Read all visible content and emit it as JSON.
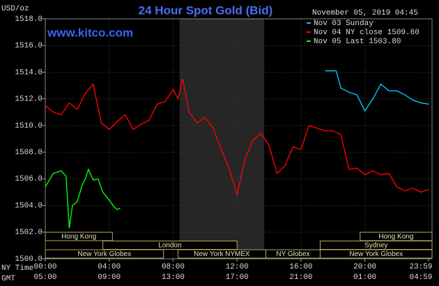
{
  "chart_data": {
    "type": "line",
    "title": "24 Hour Spot Gold (Bid)",
    "watermark": "www.kitco.com",
    "y_label": "USD/oz",
    "timestamp": "November 05, 2019 04:45",
    "legend": "top-right",
    "grid": true,
    "xlim": [
      0,
      24.2
    ],
    "ylim": [
      1500,
      1518
    ],
    "yticks": [
      {
        "value": 1500,
        "label": "1500.0"
      },
      {
        "value": 1502,
        "label": "1502.0"
      },
      {
        "value": 1504,
        "label": "1504.0"
      },
      {
        "value": 1506,
        "label": "1506.0"
      },
      {
        "value": 1508,
        "label": "1508.0"
      },
      {
        "value": 1510,
        "label": "1510.0"
      },
      {
        "value": 1512,
        "label": "1512.0"
      },
      {
        "value": 1514,
        "label": "1514.0"
      },
      {
        "value": 1516,
        "label": "1516.0"
      },
      {
        "value": 1518,
        "label": "1518.0"
      }
    ],
    "xticks": [
      {
        "value": 0,
        "label": "00:00"
      },
      {
        "value": 4,
        "label": "04:00"
      },
      {
        "value": 8,
        "label": "08:00"
      },
      {
        "value": 12,
        "label": "12:00"
      },
      {
        "value": 16,
        "label": "16:00"
      },
      {
        "value": 20,
        "label": "20:00"
      },
      {
        "value": 23.98,
        "label": "23:59"
      }
    ],
    "xticks_gmt": [
      "05:00",
      "09:00",
      "13:00",
      "17:00",
      "21:00",
      "01:00",
      "04:59"
    ],
    "x_row_labels": [
      "NY Time",
      "GMT"
    ],
    "shaded": [
      8.4,
      13.7
    ],
    "sessions": [
      {
        "label": "Hong Kong",
        "start": 0,
        "end": 4.2,
        "row": 0
      },
      {
        "label": "Hong Kong",
        "start": 19.7,
        "end": 24.2,
        "row": 0
      },
      {
        "label": "London",
        "start": 3.6,
        "end": 12.0,
        "row": 1
      },
      {
        "label": "Sydney",
        "start": 17.2,
        "end": 24.2,
        "row": 1
      },
      {
        "label": "New York Globex",
        "start": 0,
        "end": 7.4,
        "row": 2
      },
      {
        "label": "New York NYMEX",
        "start": 8.3,
        "end": 13.8,
        "row": 2
      },
      {
        "label": "NY Globex",
        "start": 13.8,
        "end": 17.2,
        "row": 2
      },
      {
        "label": "New York Globex",
        "start": 17.2,
        "end": 24.2,
        "row": 2
      }
    ],
    "series": [
      {
        "name": "Nov 03 Sunday",
        "color": "#00c8ff",
        "x": [
          17.5,
          18.2,
          18.5,
          19,
          19.5,
          20,
          20.5,
          21,
          21.5,
          22,
          22.5,
          23,
          23.5,
          24
        ],
        "values": [
          1514.1,
          1514.1,
          1512.8,
          1512.5,
          1512.3,
          1511.1,
          1512.0,
          1513.1,
          1512.6,
          1512.6,
          1512.3,
          1511.9,
          1511.7,
          1511.6
        ]
      },
      {
        "name": "Nov 04 NY close 1509.60",
        "color": "#ff0000",
        "x": [
          0,
          0.5,
          1,
          1.5,
          2,
          2.5,
          3,
          3.5,
          4,
          4.5,
          5,
          5.5,
          6,
          6.5,
          7,
          7.5,
          8,
          8.3,
          8.6,
          9,
          9.5,
          10,
          10.5,
          11,
          11.5,
          12,
          12.5,
          13,
          13.5,
          14,
          14.5,
          15,
          15.5,
          16,
          16.5,
          17,
          17.5,
          18,
          18.5,
          19,
          19.5,
          20,
          20.5,
          21,
          21.5,
          22,
          22.5,
          23,
          23.5,
          24
        ],
        "values": [
          1511.5,
          1511.0,
          1510.8,
          1511.7,
          1511.2,
          1512.4,
          1513.1,
          1510.2,
          1509.7,
          1510.3,
          1510.8,
          1509.7,
          1510.1,
          1510.4,
          1511.6,
          1511.8,
          1512.7,
          1512.0,
          1513.5,
          1511.0,
          1510.2,
          1510.6,
          1509.8,
          1508.2,
          1506.8,
          1504.8,
          1507.5,
          1508.9,
          1509.4,
          1508.5,
          1506.4,
          1507.0,
          1508.4,
          1508.2,
          1510.0,
          1509.8,
          1509.6,
          1509.6,
          1509.3,
          1506.7,
          1506.8,
          1506.3,
          1506.6,
          1506.3,
          1506.4,
          1505.4,
          1505.1,
          1505.3,
          1505.0,
          1505.2
        ]
      },
      {
        "name": "Nov 05 Last 1503.80",
        "color": "#00ff00",
        "x": [
          0,
          0.5,
          1,
          1.3,
          1.5,
          1.7,
          2,
          2.3,
          2.5,
          2.7,
          3,
          3.3,
          3.6,
          4,
          4.3,
          4.5,
          4.7
        ],
        "values": [
          1505.4,
          1506.4,
          1506.6,
          1506.2,
          1502.3,
          1504.0,
          1504.3,
          1505.5,
          1506.0,
          1506.7,
          1505.9,
          1506.0,
          1505.0,
          1504.4,
          1503.9,
          1503.7,
          1503.8
        ]
      }
    ]
  }
}
